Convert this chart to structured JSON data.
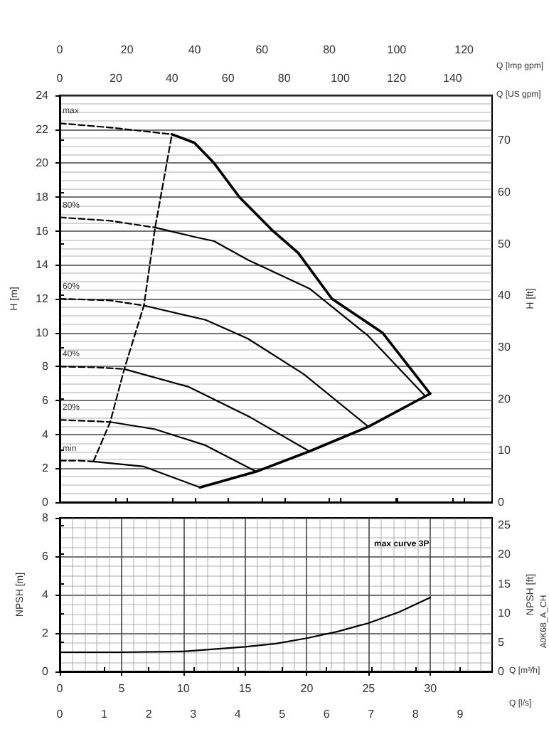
{
  "chart_data": [
    {
      "type": "line",
      "xlabel": "Q [US gpm]",
      "ylabel": "H [m]",
      "y2label": "H [ft]",
      "x2label": "Q [Imp gpm]",
      "xlim": [
        0,
        154.1
      ],
      "xticks": [
        0,
        20,
        40,
        60,
        80,
        100,
        120,
        140
      ],
      "ylim": [
        0,
        24
      ],
      "yticks": [
        0,
        2,
        4,
        6,
        8,
        10,
        12,
        14,
        16,
        18,
        20,
        22,
        24
      ],
      "y2lim": [
        0,
        78.74
      ],
      "y2ticks": [
        0,
        10,
        20,
        30,
        40,
        50,
        60,
        70
      ],
      "x2lim": [
        0,
        128.3
      ],
      "x2ticks": [
        0,
        20,
        40,
        60,
        80,
        100,
        120
      ],
      "grid": "y",
      "legend": false,
      "marker": "none",
      "series": [
        {
          "name": "max",
          "color": "#000000",
          "line_style": "dashed",
          "x": [
            0,
            18,
            40
          ],
          "values": [
            22.35,
            22.1,
            21.7
          ]
        },
        {
          "color": "#000000",
          "line_style": "solid",
          "x": [
            40,
            48,
            55,
            64,
            76,
            85,
            97,
            115,
            132
          ],
          "values": [
            21.7,
            21.2,
            20,
            18,
            16,
            14.7,
            12,
            10,
            6.4
          ]
        },
        {
          "name": "80%",
          "color": "#000000",
          "line_style": "dashed",
          "x": [
            0,
            18,
            34
          ],
          "values": [
            16.8,
            16.6,
            16.2
          ]
        },
        {
          "color": "#000000",
          "line_style": "solid",
          "x": [
            34,
            48,
            55,
            67,
            89,
            110,
            130
          ],
          "values": [
            16.2,
            15.65,
            15.4,
            14.3,
            12.6,
            9.8,
            6.3
          ]
        },
        {
          "name": "60%",
          "color": "#000000",
          "line_style": "dashed",
          "x": [
            0,
            18,
            30
          ],
          "values": [
            12,
            11.9,
            11.6
          ]
        },
        {
          "color": "#000000",
          "line_style": "solid",
          "x": [
            30,
            52,
            67,
            87,
            110
          ],
          "values": [
            11.6,
            10.75,
            9.65,
            7.55,
            4.45
          ]
        },
        {
          "name": "40%",
          "color": "#000000",
          "line_style": "dashed",
          "x": [
            0,
            13,
            23
          ],
          "values": [
            8,
            7.95,
            7.85
          ]
        },
        {
          "color": "#000000",
          "line_style": "solid",
          "x": [
            23,
            46,
            68,
            89
          ],
          "values": [
            7.85,
            6.8,
            5,
            3
          ]
        },
        {
          "name": "20%",
          "color": "#000000",
          "line_style": "dashed",
          "x": [
            0,
            9,
            18
          ],
          "values": [
            4.85,
            4.8,
            4.73
          ]
        },
        {
          "color": "#000000",
          "line_style": "solid",
          "x": [
            18,
            34,
            52,
            70
          ],
          "values": [
            4.73,
            4.3,
            3.35,
            1.8
          ]
        },
        {
          "name": "min",
          "color": "#000000",
          "line_style": "dashed",
          "x": [
            0,
            7,
            12
          ],
          "values": [
            2.45,
            2.45,
            2.4
          ]
        },
        {
          "color": "#000000",
          "line_style": "solid",
          "x": [
            12,
            30,
            50
          ],
          "values": [
            2.4,
            2.1,
            0.87
          ]
        },
        {
          "color": "#000000",
          "line_style": "solid",
          "x": [
            50,
            70,
            89,
            110,
            132
          ],
          "values": [
            0.87,
            1.8,
            3,
            4.45,
            6.4
          ]
        },
        {
          "color": "#000000",
          "line_style": "dashed",
          "x": [
            12,
            18,
            23,
            30,
            34,
            40
          ],
          "values": [
            2.4,
            4.73,
            7.85,
            11.6,
            16.2,
            21.7
          ]
        }
      ]
    },
    {
      "type": "line",
      "xlabel": "Q [m³/h]",
      "ylabel": "NPSH [m]",
      "y2label": "NPSH [ft]",
      "x2label": "Q [l/s]",
      "xlim": [
        0,
        35
      ],
      "xticks": [
        0,
        5,
        10,
        15,
        20,
        25,
        30
      ],
      "ylim": [
        0,
        8
      ],
      "yticks": [
        0,
        2,
        4,
        6,
        8
      ],
      "y2lim": [
        0,
        26.25
      ],
      "y2ticks": [
        0,
        5,
        10,
        15,
        20,
        25
      ],
      "x2lim": [
        0,
        9.722
      ],
      "x2ticks": [
        0,
        1,
        2,
        3,
        4,
        5,
        6,
        7,
        8,
        9
      ],
      "grid": true,
      "legend": false,
      "marker": "none",
      "annotations": [
        "max curve 3P",
        "A0K68_A_CH"
      ],
      "series": [
        {
          "color": "#000000",
          "line_style": "solid",
          "x": [
            0,
            5,
            10,
            15,
            17.5,
            20,
            22.5,
            25,
            27.5,
            30
          ],
          "values": [
            1,
            1,
            1.04,
            1.28,
            1.45,
            1.73,
            2.08,
            2.52,
            3.1,
            3.85
          ]
        }
      ]
    }
  ]
}
